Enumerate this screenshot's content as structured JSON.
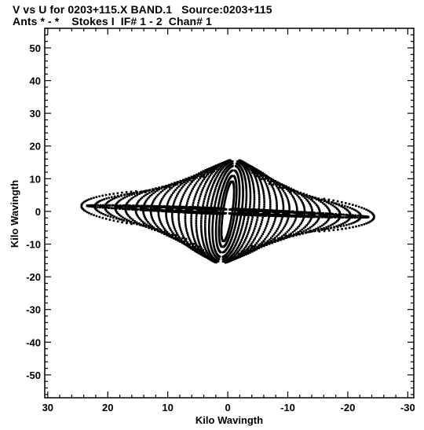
{
  "header": {
    "line1": "V vs U for 0203+115.X BAND.1   Source:0203+115",
    "line2": "Ants * - *    Stokes I  IF# 1 - 2  Chan# 1"
  },
  "chart_data": {
    "type": "scatter",
    "title": "V vs U for 0203+115.X BAND.1   Source:0203+115",
    "subtitle": "Ants * - *    Stokes I  IF# 1 - 2  Chan# 1",
    "xlabel": "Kilo Wavingth",
    "ylabel": "Kilo Wavingth",
    "xlim": [
      30.5,
      -31
    ],
    "ylim": [
      -57,
      56
    ],
    "x_reversed": true,
    "xticks": [
      30,
      20,
      10,
      0,
      -10,
      -20,
      -30
    ],
    "xtick_labels": [
      "30",
      "20",
      "10",
      "0",
      "-10",
      "-20",
      "-30"
    ],
    "yticks": [
      50,
      40,
      30,
      20,
      10,
      0,
      -10,
      -20,
      -30,
      -40,
      -50
    ],
    "ytick_labels": [
      "50",
      "40",
      "30",
      "20",
      "10",
      "0",
      "-10",
      "-20",
      "-30",
      "-40",
      "-50"
    ],
    "grid": false,
    "marker_color": "#000000",
    "series": [
      {
        "tracks": [
          {
            "a": 28.6,
            "e": 0.38,
            "t0": -50,
            "t1": 50
          },
          {
            "a": 26.0,
            "e": 0.4,
            "t0": -52,
            "t1": 52
          },
          {
            "a": 24.0,
            "e": 0.5,
            "t0": -54,
            "t1": 54
          },
          {
            "a": 22.0,
            "e": 0.6,
            "t0": -58,
            "t1": 58
          },
          {
            "a": 20.0,
            "e": 0.75,
            "t0": -62,
            "t1": 62
          },
          {
            "a": 18.0,
            "e": 0.9,
            "t0": -66,
            "t1": 66
          },
          {
            "a": 16.5,
            "e": 1.1,
            "t0": -70,
            "t1": 70
          },
          {
            "a": 15.0,
            "e": 1.3,
            "t0": -72,
            "t1": 72
          },
          {
            "a": 13.5,
            "e": 1.55,
            "t0": -74,
            "t1": 74
          },
          {
            "a": 12.0,
            "e": 1.85,
            "t0": -76,
            "t1": 76
          },
          {
            "a": 10.8,
            "e": 2.2,
            "t0": -78,
            "t1": 78
          },
          {
            "a": 9.5,
            "e": 2.6,
            "t0": -80,
            "t1": 80
          },
          {
            "a": 8.2,
            "e": 3.1,
            "t0": -80,
            "t1": 80
          },
          {
            "a": 7.0,
            "e": 3.7,
            "t0": -82,
            "t1": 82
          },
          {
            "a": 6.0,
            "e": 4.4,
            "t0": -82,
            "t1": 82
          },
          {
            "a": 5.0,
            "e": 5.2,
            "t0": -82,
            "t1": 82
          },
          {
            "a": 4.2,
            "e": 6.1,
            "t0": -84,
            "t1": 84
          },
          {
            "a": 3.4,
            "e": 7.2,
            "t0": -84,
            "t1": 84
          },
          {
            "a": 2.7,
            "e": 8.6,
            "t0": -84,
            "t1": 84
          },
          {
            "a": 2.0,
            "e": 10.5,
            "t0": -84,
            "t1": 84
          },
          {
            "a": 1.4,
            "e": 13.0,
            "t0": -84,
            "t1": 84
          },
          {
            "a": 0.9,
            "e": 17.0,
            "t0": -84,
            "t1": 84
          },
          {
            "a": 27.5,
            "e": 0.05,
            "t0": -80,
            "t1": 80
          },
          {
            "a": 25.0,
            "e": 0.06,
            "t0": -80,
            "t1": 80
          },
          {
            "a": 22.0,
            "e": 0.07,
            "t0": -82,
            "t1": 82
          },
          {
            "a": 19.5,
            "e": 0.08,
            "t0": -82,
            "t1": 82
          },
          {
            "a": 17.0,
            "e": 0.09,
            "t0": -84,
            "t1": 84
          },
          {
            "a": 14.5,
            "e": 0.1,
            "t0": -84,
            "t1": 84
          },
          {
            "a": 12.0,
            "e": 0.12,
            "t0": -84,
            "t1": 84
          },
          {
            "a": 10.0,
            "e": 0.14,
            "t0": -84,
            "t1": 84
          },
          {
            "a": 8.0,
            "e": 0.16,
            "t0": -84,
            "t1": 84
          },
          {
            "a": 6.0,
            "e": 0.2,
            "t0": -84,
            "t1": 84
          },
          {
            "a": 4.5,
            "e": 0.25,
            "t0": -84,
            "t1": 84
          },
          {
            "a": 3.0,
            "e": 0.32,
            "t0": -84,
            "t1": 84
          }
        ],
        "tilt": 0.55,
        "step": 2.5
      }
    ]
  }
}
